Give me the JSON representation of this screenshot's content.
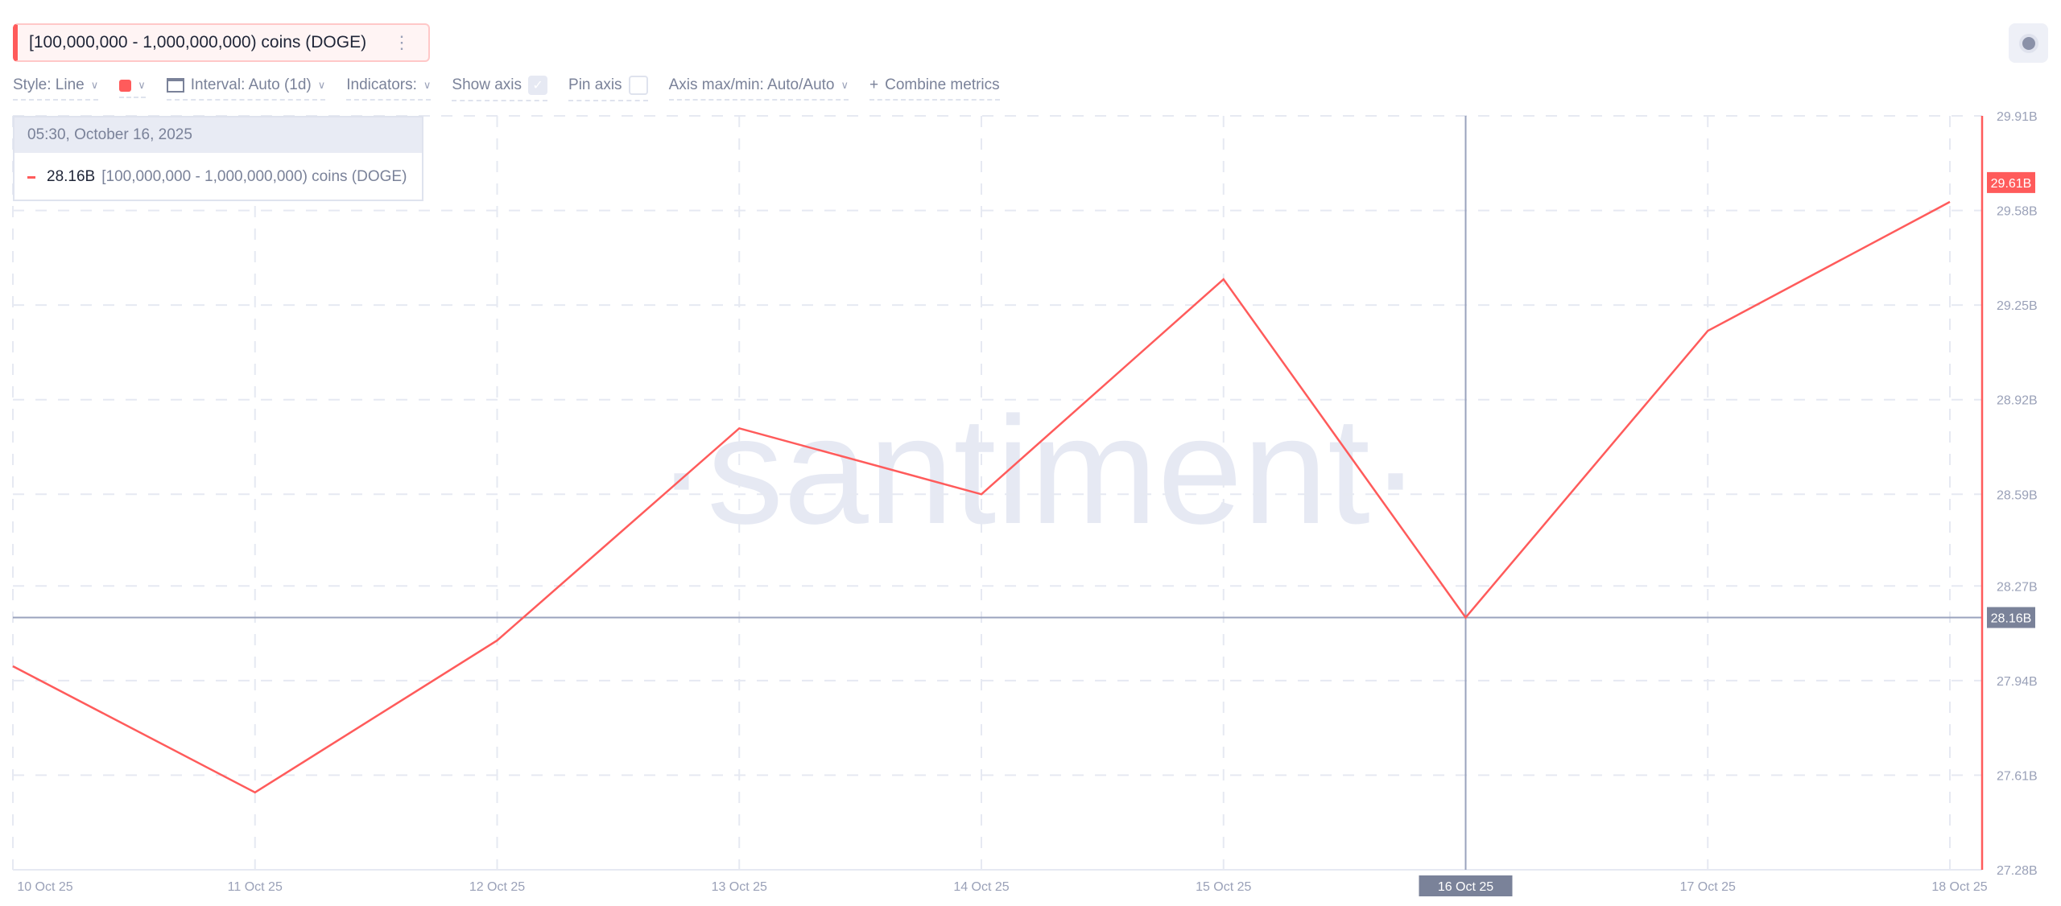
{
  "legend": {
    "metric_label": "[100,000,000 - 1,000,000,000) coins (DOGE)",
    "menu_icon": "vertical-dots-icon"
  },
  "toolbar": {
    "style": "Style: Line",
    "interval": "Interval: Auto (1d)",
    "indicators": "Indicators:",
    "show_axis": "Show axis",
    "show_axis_checked": true,
    "pin_axis": "Pin axis",
    "pin_axis_checked": false,
    "axis_maxmin": "Axis max/min: Auto/Auto",
    "combine": "Combine metrics",
    "color": "#ff5b5b"
  },
  "tooltip": {
    "date": "05:30, October 16, 2025",
    "value": "28.16B",
    "label": "[100,000,000 - 1,000,000,000) coins (DOGE)"
  },
  "watermark": "·santiment·",
  "chart_data": {
    "type": "line",
    "categories": [
      "10 Oct 25",
      "11 Oct 25",
      "12 Oct 25",
      "13 Oct 25",
      "14 Oct 25",
      "15 Oct 25",
      "16 Oct 25",
      "17 Oct 25",
      "18 Oct 25"
    ],
    "series": [
      {
        "values": [
          27.99,
          27.55,
          28.08,
          28.82,
          28.59,
          29.34,
          28.16,
          29.16,
          29.61
        ],
        "color": "#ff5b5b"
      }
    ],
    "unit": "B",
    "ylim": [
      27.28,
      29.91
    ],
    "y_ticks": [
      "29.91B",
      "29.58B",
      "29.25B",
      "28.92B",
      "28.59B",
      "28.27B",
      "27.94B",
      "27.61B",
      "27.28B"
    ],
    "y_tick_values": [
      29.91,
      29.58,
      29.25,
      28.92,
      28.59,
      28.27,
      27.94,
      27.61,
      27.28
    ],
    "last_value_label": "29.61B",
    "crosshair": {
      "x": "16 Oct 25",
      "y_label": "28.16B",
      "y": 28.16
    },
    "grid": true,
    "axis_position": "right"
  }
}
